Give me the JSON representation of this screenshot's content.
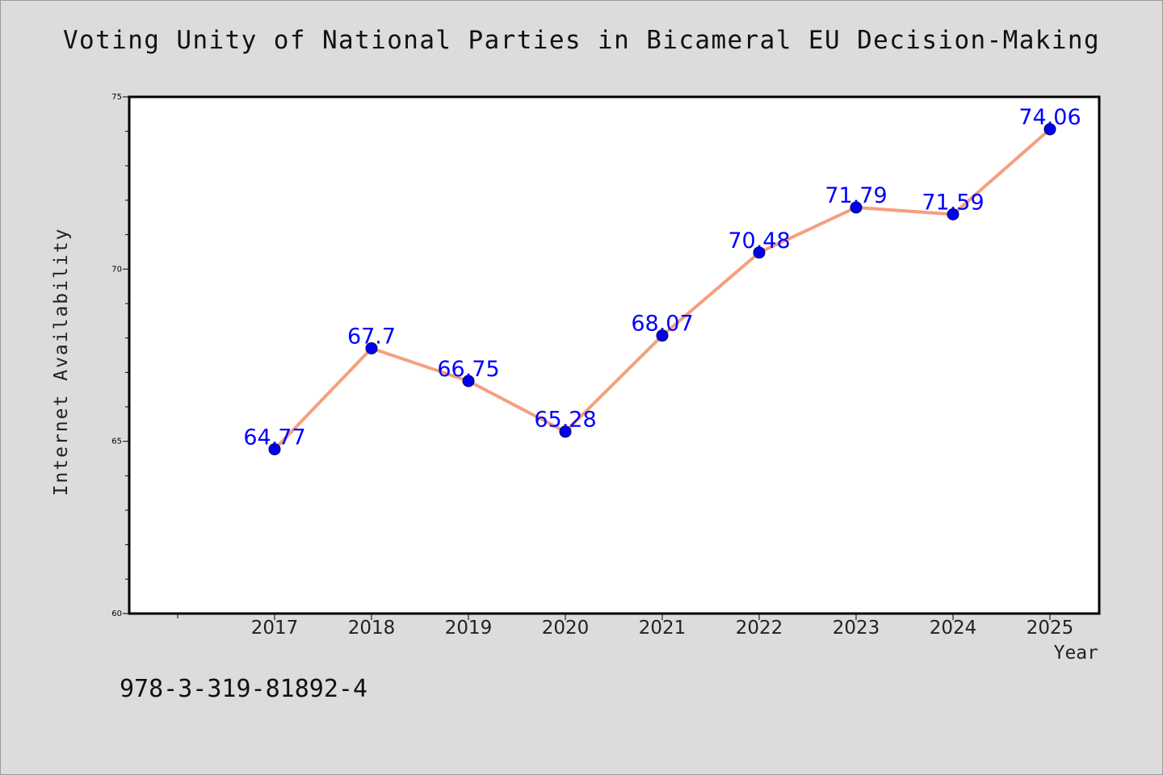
{
  "chart_data": {
    "type": "line",
    "title": "Voting Unity of National Parties in Bicameral EU Decision-Making",
    "xlabel": "Year",
    "ylabel": "Internet Availability",
    "x": [
      "2017",
      "2018",
      "2019",
      "2020",
      "2021",
      "2022",
      "2023",
      "2024",
      "2025"
    ],
    "series": [
      {
        "values": [
          64.77,
          67.7,
          66.75,
          65.28,
          68.07,
          70.48,
          71.79,
          71.59,
          74.06
        ],
        "labels": [
          "64.77",
          "67.7",
          "66.75",
          "65.28",
          "68.07",
          "70.48",
          "71.79",
          "71.59",
          "74.06"
        ]
      }
    ],
    "ylim": [
      60,
      75
    ],
    "yticks": [
      "60",
      "65",
      "70",
      "75"
    ],
    "grid": false,
    "line_color": "#f4a07e",
    "marker_color": "#0000ee",
    "label_color": "#0000ff"
  },
  "footer": {
    "code": "978-3-319-81892-4"
  }
}
